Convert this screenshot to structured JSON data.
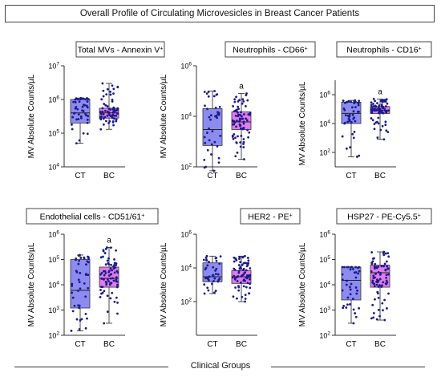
{
  "figure_title": "Overall Profile of Circulating Microvesicles in Breast Cancer Patients",
  "footer_label": "Clinical Groups",
  "colors": {
    "ct_box": "#8c8cf0",
    "bc_box": "#e07de6",
    "dot": "#1a1a8c",
    "frame": "#333333"
  },
  "chart_data": [
    {
      "type": "box",
      "title_main": "Total MVs - Annexin V",
      "title_sup": "+",
      "ylabel": "MV Absolute Counts/µL",
      "scale": "log",
      "ylim_exp": [
        4,
        7
      ],
      "tick_exps": [
        4,
        5,
        6,
        7
      ],
      "categories": [
        "CT",
        "BC"
      ],
      "annotations": [
        "",
        ""
      ],
      "series": [
        {
          "name": "CT",
          "q1": 200000,
          "median": 400000,
          "q3": 1000000,
          "min": 50000,
          "max": 1100000,
          "n": 45
        },
        {
          "name": "BC",
          "q1": 280000,
          "median": 400000,
          "q3": 550000,
          "min": 130000,
          "max": 3000000,
          "n": 70
        }
      ]
    },
    {
      "type": "box",
      "title_main": "Neutrophils - CD66",
      "title_sup": "+",
      "ylabel": "MV Absolute Counts/µL",
      "scale": "log",
      "ylim_exp": [
        2,
        6
      ],
      "tick_exps": [
        2,
        4,
        6
      ],
      "categories": [
        "CT",
        "BC"
      ],
      "annotations": [
        "",
        "a"
      ],
      "series": [
        {
          "name": "CT",
          "q1": 700,
          "median": 3000,
          "q3": 20000,
          "min": 70,
          "max": 100000,
          "n": 40
        },
        {
          "name": "BC",
          "q1": 3000,
          "median": 6000,
          "q3": 15000,
          "min": 200,
          "max": 80000,
          "n": 75
        }
      ]
    },
    {
      "type": "box",
      "title_main": "Neutrophils - CD16",
      "title_sup": "+",
      "ylabel": "MV Absolute Counts/µL",
      "scale": "log",
      "ylim_exp": [
        1,
        7
      ],
      "tick_exps": [
        2,
        4,
        6
      ],
      "categories": [
        "CT",
        "BC"
      ],
      "annotations": [
        "",
        "a"
      ],
      "series": [
        {
          "name": "CT",
          "q1": 10000,
          "median": 50000,
          "q3": 300000,
          "min": 50,
          "max": 400000,
          "n": 45
        },
        {
          "name": "BC",
          "q1": 50000,
          "median": 80000,
          "q3": 150000,
          "min": 800,
          "max": 500000,
          "n": 75
        }
      ]
    },
    {
      "type": "box",
      "title_main": "Endothelial cells - CD51/61",
      "title_sup": "+",
      "ylabel": "MV Absolute Counts/µL",
      "scale": "log",
      "ylim_exp": [
        2,
        6
      ],
      "tick_exps": [
        2,
        3,
        4,
        5,
        6
      ],
      "categories": [
        "CT",
        "BC"
      ],
      "annotations": [
        "",
        "a"
      ],
      "series": [
        {
          "name": "CT",
          "q1": 1200,
          "median": 6000,
          "q3": 100000,
          "min": 150,
          "max": 150000,
          "n": 45
        },
        {
          "name": "BC",
          "q1": 8000,
          "median": 18000,
          "q3": 50000,
          "min": 300,
          "max": 300000,
          "n": 75
        }
      ]
    },
    {
      "type": "box",
      "title_main": "HER2 - PE",
      "title_sup": "+",
      "ylabel": "MV Absolute Counts/µL",
      "scale": "log",
      "ylim_exp": [
        0,
        6
      ],
      "tick_exps": [
        2,
        4,
        6
      ],
      "categories": [
        "CT",
        "BC"
      ],
      "annotations": [
        "",
        ""
      ],
      "series": [
        {
          "name": "CT",
          "q1": 1500,
          "median": 3000,
          "q3": 20000,
          "min": 300,
          "max": 50000,
          "n": 40
        },
        {
          "name": "BC",
          "q1": 1200,
          "median": 3000,
          "q3": 7000,
          "min": 100,
          "max": 50000,
          "n": 75
        }
      ]
    },
    {
      "type": "box",
      "title_main": "HSP27 - PE-Cy5.5",
      "title_sup": "+",
      "ylabel": "MV Absolute Counts/µL",
      "scale": "log",
      "ylim_exp": [
        2,
        6
      ],
      "tick_exps": [
        2,
        3,
        4,
        5,
        6
      ],
      "categories": [
        "CT",
        "BC"
      ],
      "annotations": [
        "",
        ""
      ],
      "series": [
        {
          "name": "CT",
          "q1": 2500,
          "median": 15000,
          "q3": 50000,
          "min": 300,
          "max": 50000,
          "n": 40
        },
        {
          "name": "BC",
          "q1": 8000,
          "median": 30000,
          "q3": 60000,
          "min": 400,
          "max": 200000,
          "n": 75
        }
      ]
    }
  ]
}
